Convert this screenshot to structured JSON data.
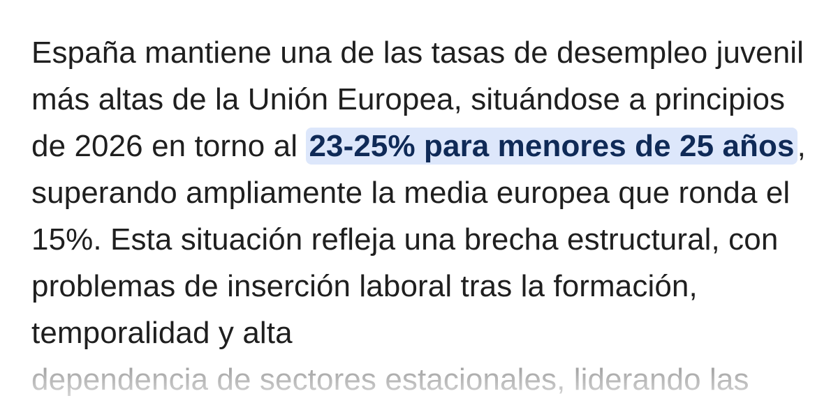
{
  "response": {
    "text_before": "España mantiene una de las tasas de desempleo juvenil más altas de la Unión Europea, situándose a principios de 2026 en torno al ",
    "highlight": "23-25% para menores de 25 años",
    "text_after": ", superando ampliamente la media europea que ronda el 15%. Esta situación refleja una brecha estructural, con problemas de inserción laboral tras la formación, temporalidad y alta",
    "faded_text": "dependencia de sectores estacionales, liderando las"
  },
  "colors": {
    "text": "#1f1f1f",
    "highlight_bg": "#dde7fb",
    "highlight_text": "#0f2a57",
    "faded_text": "#9a9a9a"
  }
}
